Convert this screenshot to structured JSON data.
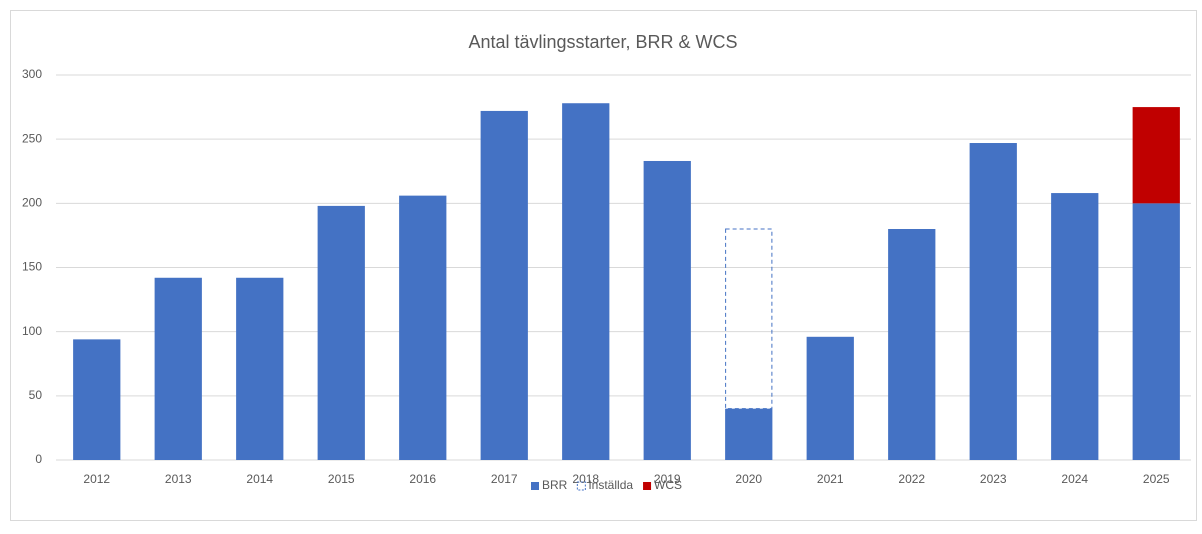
{
  "chart_data": {
    "type": "stacked_bar",
    "title": "Antal tävlingsstarter, BRR & WCS",
    "categories": [
      "2012",
      "2013",
      "2014",
      "2015",
      "2016",
      "2017",
      "2018",
      "2019",
      "2020",
      "2021",
      "2022",
      "2023",
      "2024",
      "2025"
    ],
    "series": [
      {
        "name": "BRR",
        "color": "#4472c4",
        "values": [
          94,
          142,
          142,
          198,
          206,
          272,
          278,
          233,
          40,
          96,
          180,
          247,
          208,
          200
        ]
      },
      {
        "name": "Inställda",
        "color": "#4472c4",
        "dashed": true,
        "values": [
          0,
          0,
          0,
          0,
          0,
          0,
          0,
          0,
          140,
          0,
          0,
          0,
          0,
          0
        ]
      },
      {
        "name": "WCS",
        "color": "#c00000",
        "values": [
          0,
          0,
          0,
          0,
          0,
          0,
          0,
          0,
          0,
          0,
          0,
          0,
          0,
          75
        ]
      }
    ],
    "ylim": [
      0,
      300
    ],
    "yticks": [
      0,
      50,
      100,
      150,
      200,
      250,
      300
    ],
    "grid": true,
    "legend": "bottom"
  }
}
